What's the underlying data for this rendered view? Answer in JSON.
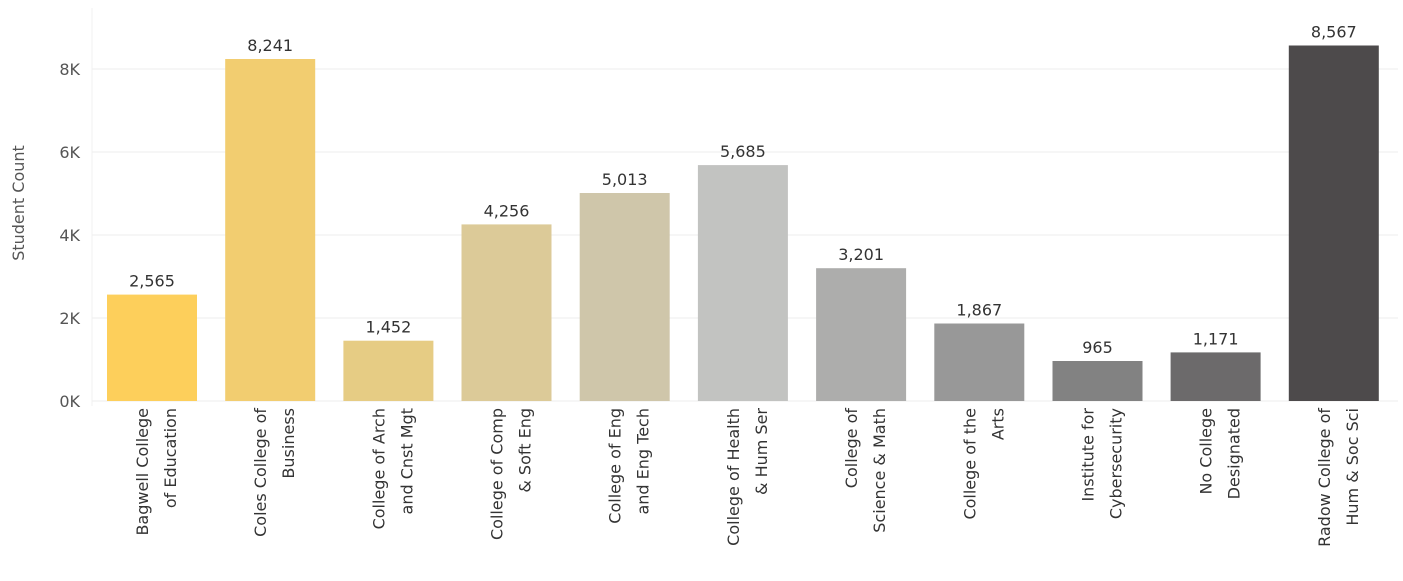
{
  "chart_data": {
    "type": "bar",
    "ylabel": "Student Count",
    "ylim": [
      0,
      9500
    ],
    "yticks": [
      0,
      2000,
      4000,
      6000,
      8000
    ],
    "ytick_labels": [
      "0K",
      "2K",
      "4K",
      "6K",
      "8K"
    ],
    "grid": true,
    "categories": [
      [
        "Bagwell College",
        "of Education"
      ],
      [
        "Coles College of",
        "Business"
      ],
      [
        "College of Arch",
        "and Cnst Mgt"
      ],
      [
        "College of Comp",
        "& Soft Eng"
      ],
      [
        "College of Eng",
        "and Eng Tech"
      ],
      [
        "College of Health",
        "& Hum Ser"
      ],
      [
        "College of",
        "Science & Math"
      ],
      [
        "College of the",
        "Arts"
      ],
      [
        "Institute for",
        "Cybersecurity"
      ],
      [
        "No College",
        "Designated"
      ],
      [
        "Radow College of",
        "Hum & Soc Sci"
      ]
    ],
    "values": [
      2565,
      8241,
      1452,
      4256,
      5013,
      5685,
      3201,
      1867,
      965,
      1171,
      8567
    ],
    "value_labels": [
      "2,565",
      "8,241",
      "1,452",
      "4,256",
      "5,013",
      "5,685",
      "3,201",
      "1,867",
      "965",
      "1,171",
      "8,567"
    ],
    "colors": [
      "#fdcf5b",
      "#f2cd70",
      "#e6cc84",
      "#dcca98",
      "#cfc6aa",
      "#c2c3c1",
      "#adadac",
      "#989898",
      "#828282",
      "#6c6a6b",
      "#4d4a4b"
    ]
  }
}
